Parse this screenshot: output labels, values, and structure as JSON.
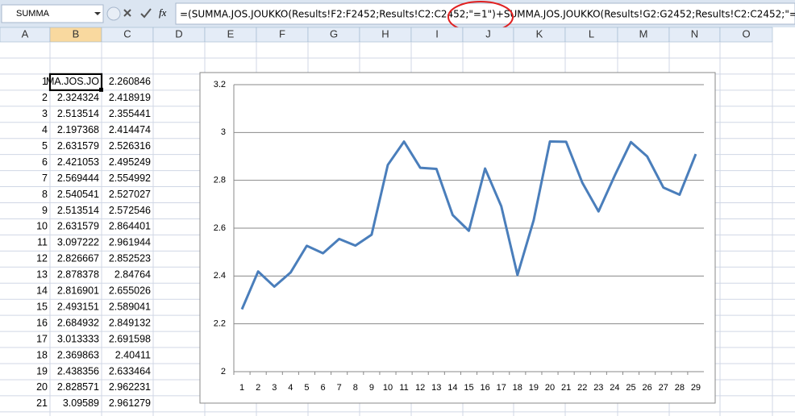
{
  "formula_bar": {
    "name_box": "SUMMA",
    "fx": "fx",
    "formula": "=(SUMMA.JOS.JOUKKO(Results!F2:F2452;Results!C2:C2452;\"=1\")+SUMMA.JOS.JOUKKO(Results!G2:G2452;Results!C2:C2452;\"="
  },
  "column_headers": [
    "A",
    "B",
    "C",
    "D",
    "E",
    "F",
    "G",
    "H",
    "I",
    "J",
    "K",
    "L",
    "M",
    "N",
    "O"
  ],
  "rows": [
    [
      "1",
      "MA.JOS.JO",
      "2.260846"
    ],
    [
      "2",
      "2.324324",
      "2.418919"
    ],
    [
      "3",
      "2.513514",
      "2.355441"
    ],
    [
      "4",
      "2.197368",
      "2.414474"
    ],
    [
      "5",
      "2.631579",
      "2.526316"
    ],
    [
      "6",
      "2.421053",
      "2.495249"
    ],
    [
      "7",
      "2.569444",
      "2.554992"
    ],
    [
      "8",
      "2.540541",
      "2.527027"
    ],
    [
      "9",
      "2.513514",
      "2.572546"
    ],
    [
      "10",
      "2.631579",
      "2.864401"
    ],
    [
      "11",
      "3.097222",
      "2.961944"
    ],
    [
      "12",
      "2.826667",
      "2.852523"
    ],
    [
      "13",
      "2.878378",
      "2.84764"
    ],
    [
      "14",
      "2.816901",
      "2.655026"
    ],
    [
      "15",
      "2.493151",
      "2.589041"
    ],
    [
      "16",
      "2.684932",
      "2.849132"
    ],
    [
      "17",
      "3.013333",
      "2.691598"
    ],
    [
      "18",
      "2.369863",
      "2.40411"
    ],
    [
      "19",
      "2.438356",
      "2.633464"
    ],
    [
      "20",
      "2.828571",
      "2.962231"
    ],
    [
      "21",
      "3.09589",
      "2.961279"
    ]
  ],
  "chart_data": {
    "type": "line",
    "categories": [
      1,
      2,
      3,
      4,
      5,
      6,
      7,
      8,
      9,
      10,
      11,
      12,
      13,
      14,
      15,
      16,
      17,
      18,
      19,
      20,
      21,
      22,
      23,
      24,
      25,
      26,
      27,
      28,
      29
    ],
    "values": [
      2.260846,
      2.418919,
      2.355441,
      2.414474,
      2.526316,
      2.495249,
      2.554992,
      2.527027,
      2.572546,
      2.864401,
      2.961944,
      2.852523,
      2.84764,
      2.655026,
      2.589041,
      2.849132,
      2.691598,
      2.40411,
      2.633464,
      2.962231,
      2.961279,
      2.79,
      2.67,
      2.82,
      2.96,
      2.9,
      2.77,
      2.74,
      2.91
    ],
    "color": "#4a7ebb",
    "ylim": [
      2,
      3.2
    ],
    "yticks": [
      2,
      2.2,
      2.4,
      2.6,
      2.8,
      3,
      3.2
    ],
    "grid": true
  }
}
